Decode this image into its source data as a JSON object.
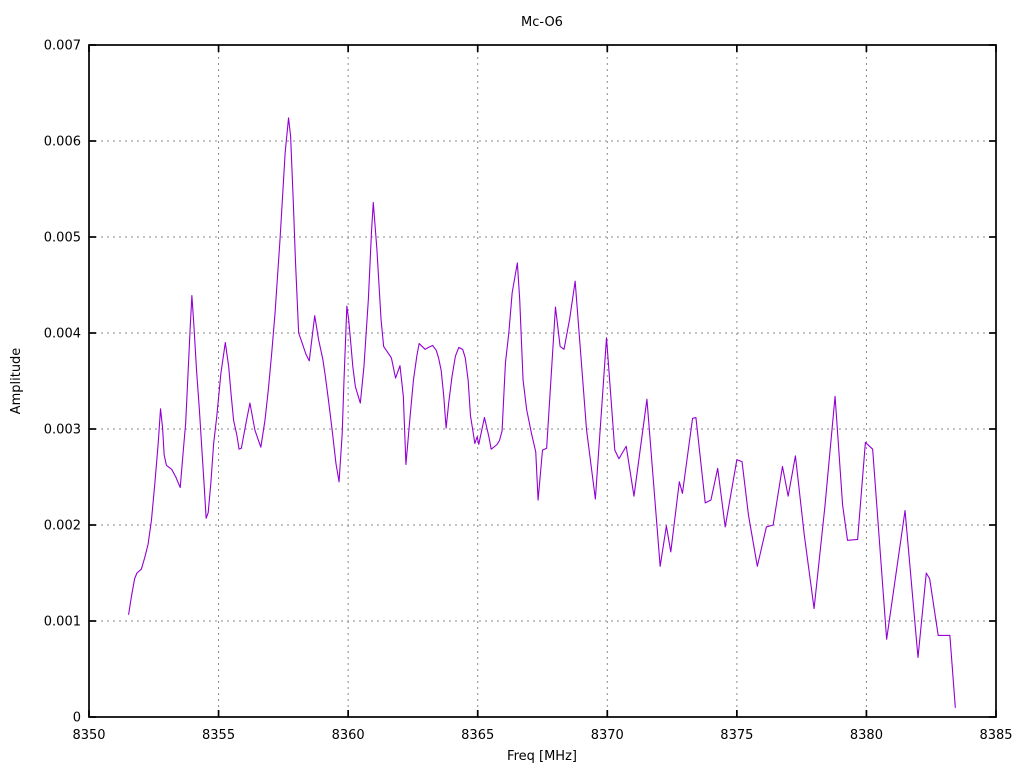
{
  "chart_data": {
    "type": "line",
    "title": "Mc-O6",
    "xlabel": "Freq [MHz]",
    "ylabel": "Amplitude",
    "xlim": [
      8350,
      8385
    ],
    "ylim": [
      0,
      0.007
    ],
    "x_ticks": [
      8350,
      8355,
      8360,
      8365,
      8370,
      8375,
      8380,
      8385
    ],
    "x_tick_labels": [
      "8350",
      "8355",
      "8360",
      "8365",
      "8370",
      "8375",
      "8380",
      "8385"
    ],
    "y_ticks": [
      0,
      0.001,
      0.002,
      0.003,
      0.004,
      0.005,
      0.006,
      0.007
    ],
    "y_tick_labels": [
      "0",
      "0.001",
      "0.002",
      "0.003",
      "0.004",
      "0.005",
      "0.006",
      "0.007"
    ],
    "grid": true,
    "legend_position": "none",
    "line_color": "#9400d3",
    "grid_color": "#8a8a8a",
    "border_color": "#000000",
    "background_color": "#ffffff",
    "series": [
      {
        "name": "Mc-O6",
        "points": [
          [
            8351.53,
            0.00107
          ],
          [
            8351.61,
            0.00121
          ],
          [
            8351.68,
            0.00132
          ],
          [
            8351.76,
            0.00144
          ],
          [
            8351.85,
            0.0015
          ],
          [
            8352.02,
            0.00154
          ],
          [
            8352.15,
            0.00166
          ],
          [
            8352.28,
            0.0018
          ],
          [
            8352.41,
            0.00205
          ],
          [
            8352.54,
            0.00243
          ],
          [
            8352.67,
            0.00285
          ],
          [
            8352.76,
            0.00321
          ],
          [
            8352.84,
            0.00301
          ],
          [
            8352.9,
            0.00273
          ],
          [
            8352.99,
            0.00262
          ],
          [
            8353.19,
            0.00258
          ],
          [
            8353.35,
            0.0025
          ],
          [
            8353.52,
            0.00239
          ],
          [
            8353.64,
            0.00278
          ],
          [
            8353.73,
            0.00306
          ],
          [
            8353.81,
            0.00351
          ],
          [
            8353.9,
            0.00403
          ],
          [
            8353.97,
            0.00439
          ],
          [
            8354.05,
            0.00407
          ],
          [
            8354.15,
            0.00361
          ],
          [
            8354.26,
            0.0032
          ],
          [
            8354.35,
            0.00281
          ],
          [
            8354.44,
            0.00243
          ],
          [
            8354.52,
            0.00207
          ],
          [
            8354.6,
            0.00213
          ],
          [
            8354.7,
            0.00243
          ],
          [
            8354.81,
            0.00285
          ],
          [
            8354.93,
            0.00313
          ],
          [
            8355.09,
            0.00358
          ],
          [
            8355.26,
            0.0039
          ],
          [
            8355.39,
            0.00365
          ],
          [
            8355.49,
            0.00334
          ],
          [
            8355.58,
            0.00309
          ],
          [
            8355.71,
            0.00293
          ],
          [
            8355.79,
            0.00279
          ],
          [
            8355.88,
            0.0028
          ],
          [
            8356.05,
            0.00305
          ],
          [
            8356.21,
            0.00327
          ],
          [
            8356.4,
            0.00299
          ],
          [
            8356.63,
            0.00281
          ],
          [
            8356.79,
            0.00309
          ],
          [
            8356.92,
            0.00341
          ],
          [
            8357.05,
            0.00379
          ],
          [
            8357.18,
            0.00421
          ],
          [
            8357.37,
            0.00497
          ],
          [
            8357.57,
            0.00588
          ],
          [
            8357.7,
            0.00624
          ],
          [
            8357.78,
            0.00605
          ],
          [
            8357.88,
            0.00539
          ],
          [
            8357.97,
            0.00473
          ],
          [
            8358.09,
            0.004
          ],
          [
            8358.22,
            0.0039
          ],
          [
            8358.37,
            0.00378
          ],
          [
            8358.5,
            0.00371
          ],
          [
            8358.71,
            0.00418
          ],
          [
            8358.86,
            0.00393
          ],
          [
            8359.02,
            0.00373
          ],
          [
            8359.12,
            0.00355
          ],
          [
            8359.25,
            0.00328
          ],
          [
            8359.4,
            0.00295
          ],
          [
            8359.53,
            0.00264
          ],
          [
            8359.65,
            0.00245
          ],
          [
            8359.77,
            0.00295
          ],
          [
            8359.84,
            0.00351
          ],
          [
            8359.95,
            0.00428
          ],
          [
            8360.02,
            0.00414
          ],
          [
            8360.09,
            0.00393
          ],
          [
            8360.18,
            0.00365
          ],
          [
            8360.28,
            0.00344
          ],
          [
            8360.47,
            0.00327
          ],
          [
            8360.61,
            0.00365
          ],
          [
            8360.78,
            0.00435
          ],
          [
            8360.9,
            0.00505
          ],
          [
            8360.97,
            0.00536
          ],
          [
            8361.11,
            0.00487
          ],
          [
            8361.27,
            0.00414
          ],
          [
            8361.37,
            0.00386
          ],
          [
            8361.67,
            0.00374
          ],
          [
            8361.83,
            0.00353
          ],
          [
            8362.0,
            0.00366
          ],
          [
            8362.13,
            0.00334
          ],
          [
            8362.23,
            0.00263
          ],
          [
            8362.39,
            0.00313
          ],
          [
            8362.52,
            0.00351
          ],
          [
            8362.65,
            0.00376
          ],
          [
            8362.74,
            0.00389
          ],
          [
            8362.97,
            0.00383
          ],
          [
            8363.1,
            0.00385
          ],
          [
            8363.26,
            0.00387
          ],
          [
            8363.4,
            0.00382
          ],
          [
            8363.49,
            0.00374
          ],
          [
            8363.59,
            0.00361
          ],
          [
            8363.69,
            0.00334
          ],
          [
            8363.78,
            0.00301
          ],
          [
            8363.88,
            0.00327
          ],
          [
            8364.01,
            0.00355
          ],
          [
            8364.14,
            0.00376
          ],
          [
            8364.27,
            0.00385
          ],
          [
            8364.42,
            0.00383
          ],
          [
            8364.52,
            0.00374
          ],
          [
            8364.63,
            0.00351
          ],
          [
            8364.72,
            0.00314
          ],
          [
            8364.89,
            0.00285
          ],
          [
            8364.98,
            0.00292
          ],
          [
            8365.04,
            0.00284
          ],
          [
            8365.26,
            0.00312
          ],
          [
            8365.43,
            0.00292
          ],
          [
            8365.52,
            0.00279
          ],
          [
            8365.62,
            0.00281
          ],
          [
            8365.75,
            0.00284
          ],
          [
            8365.84,
            0.00288
          ],
          [
            8365.94,
            0.00298
          ],
          [
            8366.07,
            0.00369
          ],
          [
            8366.2,
            0.004
          ],
          [
            8366.33,
            0.00442
          ],
          [
            8366.53,
            0.00473
          ],
          [
            8366.62,
            0.00435
          ],
          [
            8366.75,
            0.00351
          ],
          [
            8366.89,
            0.0032
          ],
          [
            8367.07,
            0.00296
          ],
          [
            8367.24,
            0.00276
          ],
          [
            8367.33,
            0.00226
          ],
          [
            8367.5,
            0.00278
          ],
          [
            8367.66,
            0.0028
          ],
          [
            8368.0,
            0.00427
          ],
          [
            8368.18,
            0.00386
          ],
          [
            8368.33,
            0.00383
          ],
          [
            8368.55,
            0.00415
          ],
          [
            8368.76,
            0.00454
          ],
          [
            8369.2,
            0.00299
          ],
          [
            8369.54,
            0.00227
          ],
          [
            8369.97,
            0.00395
          ],
          [
            8370.29,
            0.00278
          ],
          [
            8370.45,
            0.00269
          ],
          [
            8370.73,
            0.00282
          ],
          [
            8371.03,
            0.0023
          ],
          [
            8371.53,
            0.00331
          ],
          [
            8372.04,
            0.00157
          ],
          [
            8372.28,
            0.00199
          ],
          [
            8372.45,
            0.00172
          ],
          [
            8372.78,
            0.00245
          ],
          [
            8372.9,
            0.00233
          ],
          [
            8373.29,
            0.00311
          ],
          [
            8373.42,
            0.00312
          ],
          [
            8373.78,
            0.00223
          ],
          [
            8374.0,
            0.00226
          ],
          [
            8374.26,
            0.00259
          ],
          [
            8374.55,
            0.00198
          ],
          [
            8375.0,
            0.00268
          ],
          [
            8375.2,
            0.00266
          ],
          [
            8375.45,
            0.0021
          ],
          [
            8375.79,
            0.00157
          ],
          [
            8376.14,
            0.00198
          ],
          [
            8376.4,
            0.002
          ],
          [
            8376.76,
            0.00261
          ],
          [
            8376.98,
            0.0023
          ],
          [
            8377.26,
            0.00272
          ],
          [
            8377.6,
            0.0019
          ],
          [
            8377.98,
            0.00113
          ],
          [
            8378.4,
            0.0022
          ],
          [
            8378.79,
            0.00334
          ],
          [
            8379.08,
            0.00221
          ],
          [
            8379.27,
            0.00184
          ],
          [
            8379.66,
            0.00185
          ],
          [
            8379.96,
            0.00286
          ],
          [
            8380.24,
            0.00279
          ],
          [
            8380.78,
            0.00081
          ],
          [
            8381.49,
            0.00215
          ],
          [
            8381.99,
            0.00062
          ],
          [
            8382.31,
            0.0015
          ],
          [
            8382.44,
            0.00144
          ],
          [
            8382.77,
            0.00085
          ],
          [
            8383.22,
            0.00085
          ],
          [
            8383.43,
            0.0001
          ]
        ]
      }
    ]
  }
}
